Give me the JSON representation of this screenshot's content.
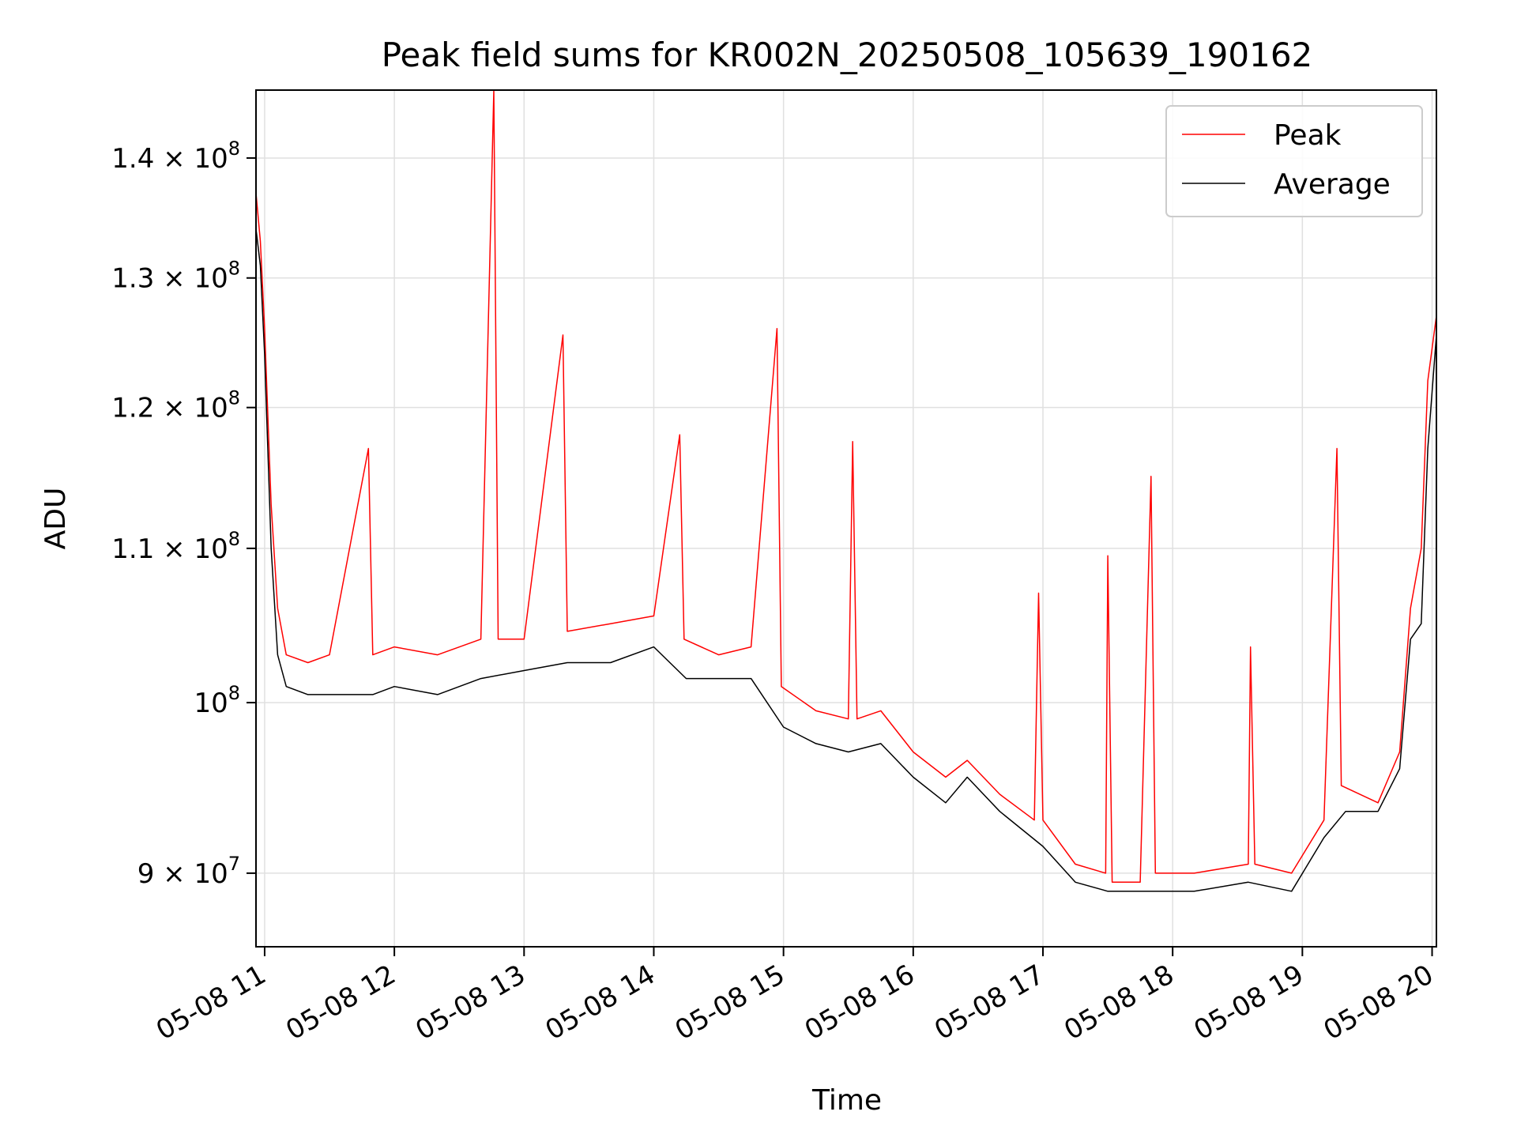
{
  "chart_data": {
    "type": "line",
    "title": "Peak field sums for KR002N_20250508_105639_190162",
    "xlabel": "Time",
    "ylabel": "ADU",
    "y_scale": "log",
    "xlim": [
      "2025-05-08T10:56",
      "2025-05-08T20:02"
    ],
    "ylim": [
      86000000,
      146000000
    ],
    "x_ticks": [
      {
        "t": "2025-05-08T11:00",
        "label": "05-08 11"
      },
      {
        "t": "2025-05-08T12:00",
        "label": "05-08 12"
      },
      {
        "t": "2025-05-08T13:00",
        "label": "05-08 13"
      },
      {
        "t": "2025-05-08T14:00",
        "label": "05-08 14"
      },
      {
        "t": "2025-05-08T15:00",
        "label": "05-08 15"
      },
      {
        "t": "2025-05-08T16:00",
        "label": "05-08 16"
      },
      {
        "t": "2025-05-08T17:00",
        "label": "05-08 17"
      },
      {
        "t": "2025-05-08T18:00",
        "label": "05-08 18"
      },
      {
        "t": "2025-05-08T19:00",
        "label": "05-08 19"
      },
      {
        "t": "2025-05-08T20:00",
        "label": "05-08 20"
      }
    ],
    "y_ticks": [
      {
        "value": 90000000,
        "mantissa": "9",
        "exponent": "7"
      },
      {
        "value": 100000000,
        "mantissa": "",
        "exponent": "8"
      },
      {
        "value": 110000000,
        "mantissa": "1.1",
        "exponent": "8"
      },
      {
        "value": 120000000,
        "mantissa": "1.2",
        "exponent": "8"
      },
      {
        "value": 130000000,
        "mantissa": "1.3",
        "exponent": "8"
      },
      {
        "value": 140000000,
        "mantissa": "1.4",
        "exponent": "8"
      }
    ],
    "grid": true,
    "legend_position": "top-right",
    "series": [
      {
        "name": "Peak",
        "color": "#ff0000",
        "points": [
          [
            "2025-05-08T10:56",
            137000000
          ],
          [
            "2025-05-08T10:58",
            133000000
          ],
          [
            "2025-05-08T11:00",
            126000000
          ],
          [
            "2025-05-08T11:03",
            113000000
          ],
          [
            "2025-05-08T11:06",
            106000000
          ],
          [
            "2025-05-08T11:10",
            103000000
          ],
          [
            "2025-05-08T11:20",
            102500000
          ],
          [
            "2025-05-08T11:30",
            103000000
          ],
          [
            "2025-05-08T11:48",
            117000000
          ],
          [
            "2025-05-08T11:50",
            103000000
          ],
          [
            "2025-05-08T12:00",
            103500000
          ],
          [
            "2025-05-08T12:20",
            103000000
          ],
          [
            "2025-05-08T12:40",
            104000000
          ],
          [
            "2025-05-08T12:46",
            146000000
          ],
          [
            "2025-05-08T12:48",
            104000000
          ],
          [
            "2025-05-08T13:00",
            104000000
          ],
          [
            "2025-05-08T13:18",
            125500000
          ],
          [
            "2025-05-08T13:20",
            104500000
          ],
          [
            "2025-05-08T13:40",
            105000000
          ],
          [
            "2025-05-08T14:00",
            105500000
          ],
          [
            "2025-05-08T14:12",
            118000000
          ],
          [
            "2025-05-08T14:14",
            104000000
          ],
          [
            "2025-05-08T14:30",
            103000000
          ],
          [
            "2025-05-08T14:45",
            103500000
          ],
          [
            "2025-05-08T14:57",
            126000000
          ],
          [
            "2025-05-08T14:59",
            101000000
          ],
          [
            "2025-05-08T15:15",
            99500000
          ],
          [
            "2025-05-08T15:30",
            99000000
          ],
          [
            "2025-05-08T15:32",
            117500000
          ],
          [
            "2025-05-08T15:34",
            99000000
          ],
          [
            "2025-05-08T15:45",
            99500000
          ],
          [
            "2025-05-08T16:00",
            97000000
          ],
          [
            "2025-05-08T16:15",
            95500000
          ],
          [
            "2025-05-08T16:25",
            96500000
          ],
          [
            "2025-05-08T16:40",
            94500000
          ],
          [
            "2025-05-08T16:56",
            93000000
          ],
          [
            "2025-05-08T16:58",
            107000000
          ],
          [
            "2025-05-08T17:00",
            93000000
          ],
          [
            "2025-05-08T17:15",
            90500000
          ],
          [
            "2025-05-08T17:29",
            90000000
          ],
          [
            "2025-05-08T17:30",
            109500000
          ],
          [
            "2025-05-08T17:32",
            89500000
          ],
          [
            "2025-05-08T17:45",
            89500000
          ],
          [
            "2025-05-08T17:50",
            115000000
          ],
          [
            "2025-05-08T17:52",
            90000000
          ],
          [
            "2025-05-08T18:10",
            90000000
          ],
          [
            "2025-05-08T18:35",
            90500000
          ],
          [
            "2025-05-08T18:36",
            103500000
          ],
          [
            "2025-05-08T18:38",
            90500000
          ],
          [
            "2025-05-08T18:55",
            90000000
          ],
          [
            "2025-05-08T19:10",
            93000000
          ],
          [
            "2025-05-08T19:16",
            117000000
          ],
          [
            "2025-05-08T19:18",
            95000000
          ],
          [
            "2025-05-08T19:35",
            94000000
          ],
          [
            "2025-05-08T19:45",
            97000000
          ],
          [
            "2025-05-08T19:50",
            106000000
          ],
          [
            "2025-05-08T19:55",
            110000000
          ],
          [
            "2025-05-08T19:58",
            122000000
          ],
          [
            "2025-05-08T20:02",
            127000000
          ]
        ]
      },
      {
        "name": "Average",
        "color": "#000000",
        "points": [
          [
            "2025-05-08T10:56",
            134000000
          ],
          [
            "2025-05-08T10:58",
            131000000
          ],
          [
            "2025-05-08T11:00",
            124000000
          ],
          [
            "2025-05-08T11:03",
            110000000
          ],
          [
            "2025-05-08T11:06",
            103000000
          ],
          [
            "2025-05-08T11:10",
            101000000
          ],
          [
            "2025-05-08T11:20",
            100500000
          ],
          [
            "2025-05-08T11:30",
            100500000
          ],
          [
            "2025-05-08T11:50",
            100500000
          ],
          [
            "2025-05-08T12:00",
            101000000
          ],
          [
            "2025-05-08T12:20",
            100500000
          ],
          [
            "2025-05-08T12:40",
            101500000
          ],
          [
            "2025-05-08T13:00",
            102000000
          ],
          [
            "2025-05-08T13:20",
            102500000
          ],
          [
            "2025-05-08T13:40",
            102500000
          ],
          [
            "2025-05-08T14:00",
            103500000
          ],
          [
            "2025-05-08T14:15",
            101500000
          ],
          [
            "2025-05-08T14:30",
            101500000
          ],
          [
            "2025-05-08T14:45",
            101500000
          ],
          [
            "2025-05-08T15:00",
            98500000
          ],
          [
            "2025-05-08T15:15",
            97500000
          ],
          [
            "2025-05-08T15:30",
            97000000
          ],
          [
            "2025-05-08T15:45",
            97500000
          ],
          [
            "2025-05-08T16:00",
            95500000
          ],
          [
            "2025-05-08T16:15",
            94000000
          ],
          [
            "2025-05-08T16:25",
            95500000
          ],
          [
            "2025-05-08T16:40",
            93500000
          ],
          [
            "2025-05-08T17:00",
            91500000
          ],
          [
            "2025-05-08T17:15",
            89500000
          ],
          [
            "2025-05-08T17:30",
            89000000
          ],
          [
            "2025-05-08T17:45",
            89000000
          ],
          [
            "2025-05-08T18:10",
            89000000
          ],
          [
            "2025-05-08T18:35",
            89500000
          ],
          [
            "2025-05-08T18:55",
            89000000
          ],
          [
            "2025-05-08T19:10",
            92000000
          ],
          [
            "2025-05-08T19:20",
            93500000
          ],
          [
            "2025-05-08T19:35",
            93500000
          ],
          [
            "2025-05-08T19:45",
            96000000
          ],
          [
            "2025-05-08T19:50",
            104000000
          ],
          [
            "2025-05-08T19:55",
            105000000
          ],
          [
            "2025-05-08T19:58",
            117000000
          ],
          [
            "2025-05-08T20:02",
            125500000
          ]
        ]
      }
    ]
  }
}
